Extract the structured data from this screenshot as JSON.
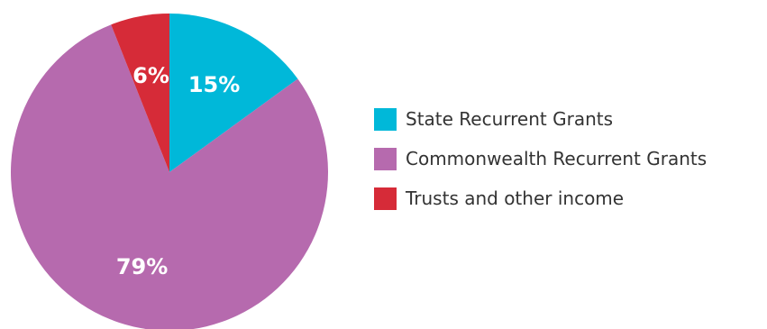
{
  "chart_data": {
    "type": "pie",
    "title": "",
    "slices": [
      {
        "name": "State Recurrent Grants",
        "value": 15,
        "label": "15%",
        "color": "#00b8d9"
      },
      {
        "name": "Commonwealth Recurrent Grants",
        "value": 79,
        "label": "79%",
        "color": "#b66aae"
      },
      {
        "name": "Trusts and other income",
        "value": 6,
        "label": "6%",
        "color": "#d62b38"
      }
    ],
    "start": "top",
    "direction": "clockwise",
    "legend_position": "right"
  }
}
